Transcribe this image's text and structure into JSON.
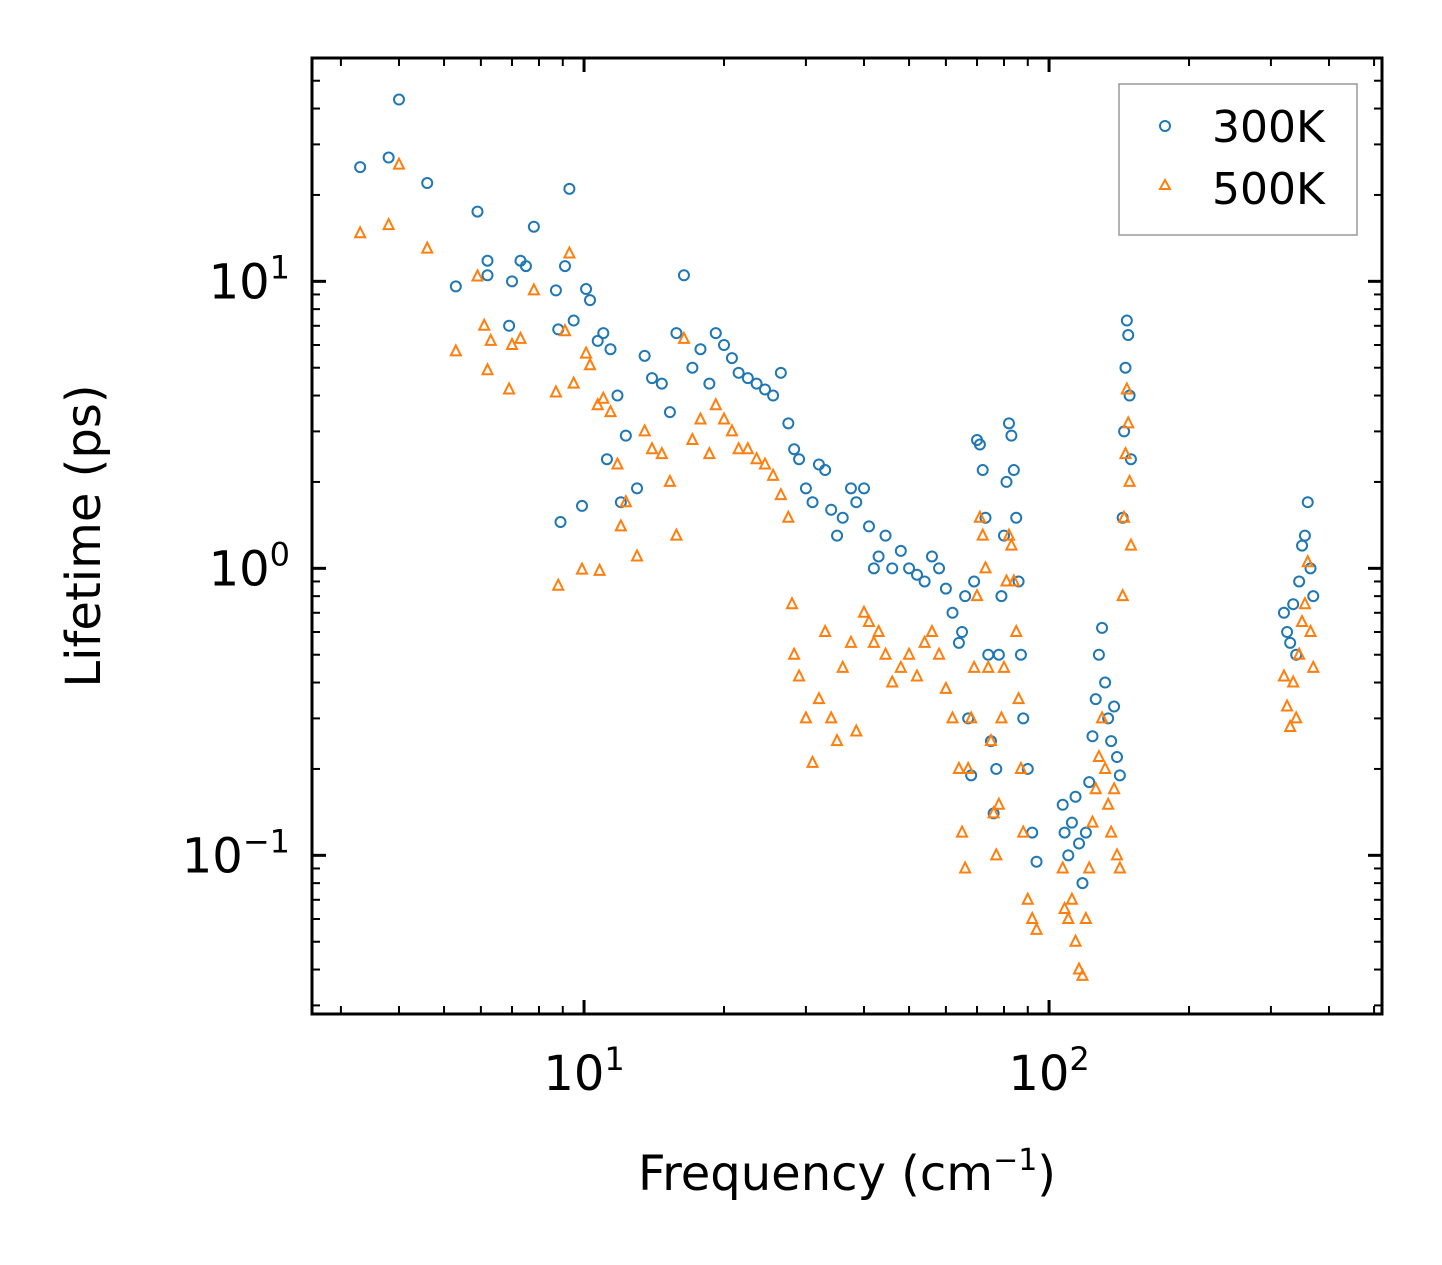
{
  "chart_data": {
    "type": "scatter",
    "title": "",
    "xlabel": "Frequency (cm",
    "xlabel_sup": "−1",
    "xlabel_suffix": ")",
    "ylabel": "Lifetime (ps)",
    "xscale": "log",
    "yscale": "log",
    "xlim": [
      2.6,
      520
    ],
    "ylim": [
      0.028,
      60
    ],
    "x_ticks": [
      {
        "base": "10",
        "exp": "1",
        "value": 10
      },
      {
        "base": "10",
        "exp": "2",
        "value": 100
      }
    ],
    "y_ticks": [
      {
        "base": "10",
        "exp": "1",
        "value": 10
      },
      {
        "base": "10",
        "exp": "0",
        "value": 1
      },
      {
        "base": "10",
        "exp": "−1",
        "value": 0.1
      }
    ],
    "legend_position": "top-right",
    "series": [
      {
        "name": "300K",
        "marker": "circle",
        "color": "#1f77b4",
        "points": [
          [
            3.3,
            25
          ],
          [
            3.8,
            27
          ],
          [
            4.0,
            43
          ],
          [
            4.6,
            22
          ],
          [
            5.3,
            9.6
          ],
          [
            5.9,
            17.5
          ],
          [
            6.2,
            11.8
          ],
          [
            6.2,
            10.5
          ],
          [
            6.9,
            7.0
          ],
          [
            7.0,
            10.0
          ],
          [
            7.3,
            11.8
          ],
          [
            7.5,
            11.3
          ],
          [
            7.8,
            15.5
          ],
          [
            8.7,
            9.3
          ],
          [
            8.8,
            6.8
          ],
          [
            8.9,
            1.45
          ],
          [
            9.1,
            11.3
          ],
          [
            9.3,
            21
          ],
          [
            9.5,
            7.3
          ],
          [
            9.9,
            1.65
          ],
          [
            10.1,
            9.4
          ],
          [
            10.3,
            8.6
          ],
          [
            10.7,
            6.2
          ],
          [
            11.0,
            6.6
          ],
          [
            11.2,
            2.4
          ],
          [
            11.4,
            5.8
          ],
          [
            11.8,
            4.0
          ],
          [
            12.0,
            1.7
          ],
          [
            12.3,
            2.9
          ],
          [
            13.0,
            1.9
          ],
          [
            13.5,
            5.5
          ],
          [
            14.0,
            4.6
          ],
          [
            14.7,
            4.4
          ],
          [
            15.3,
            3.5
          ],
          [
            15.8,
            6.6
          ],
          [
            16.4,
            10.5
          ],
          [
            17.1,
            5.0
          ],
          [
            17.8,
            5.8
          ],
          [
            18.6,
            4.4
          ],
          [
            19.2,
            6.6
          ],
          [
            20.0,
            6.0
          ],
          [
            20.8,
            5.4
          ],
          [
            21.5,
            4.8
          ],
          [
            22.5,
            4.6
          ],
          [
            23.5,
            4.4
          ],
          [
            24.5,
            4.2
          ],
          [
            25.5,
            4.0
          ],
          [
            26.5,
            4.8
          ],
          [
            27.5,
            3.2
          ],
          [
            28.3,
            2.6
          ],
          [
            29.0,
            2.4
          ],
          [
            30.0,
            1.9
          ],
          [
            31.0,
            1.7
          ],
          [
            32.0,
            2.3
          ],
          [
            33.0,
            2.2
          ],
          [
            34.0,
            1.6
          ],
          [
            35.0,
            1.3
          ],
          [
            36.0,
            1.5
          ],
          [
            37.5,
            1.9
          ],
          [
            38.5,
            1.7
          ],
          [
            40.0,
            1.9
          ],
          [
            41.0,
            1.4
          ],
          [
            42.0,
            1.0
          ],
          [
            43.0,
            1.1
          ],
          [
            44.5,
            1.3
          ],
          [
            46.0,
            1.0
          ],
          [
            48.0,
            1.15
          ],
          [
            50.0,
            1.0
          ],
          [
            52.0,
            0.95
          ],
          [
            54.0,
            0.9
          ],
          [
            56.0,
            1.1
          ],
          [
            58.0,
            1.0
          ],
          [
            60.0,
            0.85
          ],
          [
            62.0,
            0.7
          ],
          [
            64.0,
            0.55
          ],
          [
            65.0,
            0.6
          ],
          [
            66.0,
            0.8
          ],
          [
            67.0,
            0.3
          ],
          [
            68.0,
            0.19
          ],
          [
            69.0,
            0.9
          ],
          [
            70.0,
            2.8
          ],
          [
            71.0,
            2.7
          ],
          [
            72.0,
            2.2
          ],
          [
            73.0,
            1.5
          ],
          [
            74.0,
            0.5
          ],
          [
            75.0,
            0.25
          ],
          [
            76.0,
            0.14
          ],
          [
            77.0,
            0.2
          ],
          [
            78.0,
            0.5
          ],
          [
            79.0,
            0.8
          ],
          [
            80.0,
            1.3
          ],
          [
            81.0,
            2.0
          ],
          [
            82.0,
            3.2
          ],
          [
            83.0,
            2.9
          ],
          [
            84.0,
            2.2
          ],
          [
            85.0,
            1.5
          ],
          [
            86.0,
            0.9
          ],
          [
            87.0,
            0.5
          ],
          [
            88.0,
            0.3
          ],
          [
            90.0,
            0.2
          ],
          [
            92.0,
            0.12
          ],
          [
            94.0,
            0.095
          ],
          [
            107.0,
            0.15
          ],
          [
            108.0,
            0.12
          ],
          [
            110.0,
            0.1
          ],
          [
            112.0,
            0.13
          ],
          [
            114.0,
            0.16
          ],
          [
            116.0,
            0.11
          ],
          [
            118.0,
            0.08
          ],
          [
            120.0,
            0.12
          ],
          [
            122.0,
            0.18
          ],
          [
            124.0,
            0.26
          ],
          [
            126.0,
            0.35
          ],
          [
            128.0,
            0.5
          ],
          [
            130.0,
            0.62
          ],
          [
            132.0,
            0.4
          ],
          [
            134.0,
            0.3
          ],
          [
            136.0,
            0.25
          ],
          [
            138.0,
            0.33
          ],
          [
            140.0,
            0.22
          ],
          [
            142.0,
            0.19
          ],
          [
            144.0,
            1.5
          ],
          [
            145.0,
            3.0
          ],
          [
            146.0,
            5.0
          ],
          [
            147.0,
            7.3
          ],
          [
            148.0,
            6.5
          ],
          [
            149.0,
            4.0
          ],
          [
            150.0,
            2.4
          ],
          [
            320.0,
            0.7
          ],
          [
            325.0,
            0.6
          ],
          [
            330.0,
            0.55
          ],
          [
            335.0,
            0.75
          ],
          [
            340.0,
            0.5
          ],
          [
            345.0,
            0.9
          ],
          [
            350.0,
            1.2
          ],
          [
            355.0,
            1.3
          ],
          [
            360.0,
            1.7
          ],
          [
            365.0,
            1.0
          ],
          [
            370.0,
            0.8
          ]
        ]
      },
      {
        "name": "500K",
        "marker": "triangle",
        "color": "#ff7f0e",
        "points": [
          [
            3.3,
            14.7
          ],
          [
            3.8,
            15.7
          ],
          [
            4.0,
            25.5
          ],
          [
            4.6,
            13.0
          ],
          [
            5.3,
            5.7
          ],
          [
            5.9,
            10.4
          ],
          [
            6.1,
            7.0
          ],
          [
            6.2,
            4.9
          ],
          [
            6.3,
            6.2
          ],
          [
            6.9,
            4.2
          ],
          [
            7.0,
            6.0
          ],
          [
            7.3,
            6.3
          ],
          [
            7.8,
            9.3
          ],
          [
            8.7,
            4.1
          ],
          [
            8.8,
            0.87
          ],
          [
            9.1,
            6.7
          ],
          [
            9.3,
            12.5
          ],
          [
            9.5,
            4.4
          ],
          [
            9.9,
            0.99
          ],
          [
            10.1,
            5.6
          ],
          [
            10.3,
            5.1
          ],
          [
            10.7,
            3.7
          ],
          [
            10.8,
            0.98
          ],
          [
            11.0,
            3.9
          ],
          [
            11.4,
            3.5
          ],
          [
            11.8,
            2.3
          ],
          [
            12.0,
            1.4
          ],
          [
            12.3,
            1.7
          ],
          [
            13.0,
            1.1
          ],
          [
            13.5,
            3.0
          ],
          [
            14.0,
            2.6
          ],
          [
            14.7,
            2.5
          ],
          [
            15.3,
            2.0
          ],
          [
            15.8,
            1.3
          ],
          [
            16.4,
            6.3
          ],
          [
            17.1,
            2.8
          ],
          [
            17.8,
            3.3
          ],
          [
            18.6,
            2.5
          ],
          [
            19.2,
            3.7
          ],
          [
            20.0,
            3.3
          ],
          [
            20.8,
            3.0
          ],
          [
            21.5,
            2.6
          ],
          [
            22.5,
            2.6
          ],
          [
            23.5,
            2.4
          ],
          [
            24.5,
            2.3
          ],
          [
            25.5,
            2.1
          ],
          [
            26.5,
            1.8
          ],
          [
            27.5,
            1.5
          ],
          [
            28.0,
            0.75
          ],
          [
            28.3,
            0.5
          ],
          [
            29.0,
            0.42
          ],
          [
            30.0,
            0.3
          ],
          [
            31.0,
            0.21
          ],
          [
            32.0,
            0.35
          ],
          [
            33.0,
            0.6
          ],
          [
            34.0,
            0.3
          ],
          [
            35.0,
            0.25
          ],
          [
            36.0,
            0.45
          ],
          [
            37.5,
            0.55
          ],
          [
            38.5,
            0.27
          ],
          [
            40.0,
            0.7
          ],
          [
            41.0,
            0.65
          ],
          [
            42.0,
            0.55
          ],
          [
            43.0,
            0.6
          ],
          [
            44.5,
            0.5
          ],
          [
            46.0,
            0.4
          ],
          [
            48.0,
            0.45
          ],
          [
            50.0,
            0.5
          ],
          [
            52.0,
            0.42
          ],
          [
            54.0,
            0.55
          ],
          [
            56.0,
            0.6
          ],
          [
            58.0,
            0.5
          ],
          [
            60.0,
            0.38
          ],
          [
            62.0,
            0.3
          ],
          [
            64.0,
            0.2
          ],
          [
            65.0,
            0.12
          ],
          [
            66.0,
            0.09
          ],
          [
            67.0,
            0.2
          ],
          [
            68.0,
            0.3
          ],
          [
            69.0,
            0.45
          ],
          [
            70.0,
            0.8
          ],
          [
            71.0,
            1.5
          ],
          [
            72.0,
            1.3
          ],
          [
            73.0,
            1.0
          ],
          [
            74.0,
            0.45
          ],
          [
            75.0,
            0.25
          ],
          [
            76.0,
            0.14
          ],
          [
            77.0,
            0.1
          ],
          [
            78.0,
            0.15
          ],
          [
            79.0,
            0.3
          ],
          [
            80.0,
            0.45
          ],
          [
            81.0,
            0.9
          ],
          [
            82.0,
            1.3
          ],
          [
            83.0,
            1.2
          ],
          [
            84.0,
            0.9
          ],
          [
            85.0,
            0.6
          ],
          [
            86.0,
            0.35
          ],
          [
            87.0,
            0.2
          ],
          [
            88.0,
            0.12
          ],
          [
            90.0,
            0.07
          ],
          [
            92.0,
            0.06
          ],
          [
            94.0,
            0.055
          ],
          [
            107.0,
            0.09
          ],
          [
            108.0,
            0.065
          ],
          [
            110.0,
            0.06
          ],
          [
            112.0,
            0.07
          ],
          [
            114.0,
            0.05
          ],
          [
            116.0,
            0.04
          ],
          [
            118.0,
            0.038
          ],
          [
            120.0,
            0.06
          ],
          [
            122.0,
            0.09
          ],
          [
            124.0,
            0.13
          ],
          [
            126.0,
            0.17
          ],
          [
            128.0,
            0.22
          ],
          [
            130.0,
            0.3
          ],
          [
            132.0,
            0.2
          ],
          [
            134.0,
            0.15
          ],
          [
            136.0,
            0.12
          ],
          [
            138.0,
            0.17
          ],
          [
            140.0,
            0.1
          ],
          [
            142.0,
            0.09
          ],
          [
            144.0,
            0.8
          ],
          [
            145.0,
            1.5
          ],
          [
            146.0,
            2.5
          ],
          [
            147.0,
            4.2
          ],
          [
            148.0,
            3.2
          ],
          [
            149.0,
            2.0
          ],
          [
            150.0,
            1.2
          ],
          [
            320.0,
            0.42
          ],
          [
            325.0,
            0.33
          ],
          [
            330.0,
            0.28
          ],
          [
            335.0,
            0.4
          ],
          [
            340.0,
            0.3
          ],
          [
            345.0,
            0.5
          ],
          [
            350.0,
            0.65
          ],
          [
            355.0,
            0.75
          ],
          [
            360.0,
            1.05
          ],
          [
            365.0,
            0.6
          ],
          [
            370.0,
            0.45
          ]
        ]
      }
    ]
  }
}
